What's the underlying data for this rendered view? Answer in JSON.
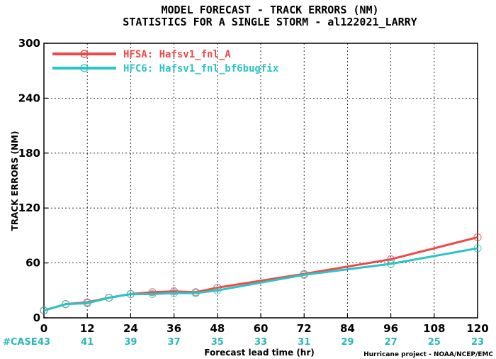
{
  "chart_data": {
    "type": "line",
    "title": "MODEL FORECAST - TRACK ERRORS (NM)",
    "subtitle": "STATISTICS FOR A SINGLE STORM - al122021_LARRY",
    "xlabel": "Forecast lead time (hr)",
    "ylabel": "TRACK ERRORS (NM)",
    "xlim": [
      0,
      120
    ],
    "ylim": [
      0,
      300
    ],
    "x_ticks": [
      "0",
      "12",
      "24",
      "36",
      "48",
      "60",
      "72",
      "84",
      "96",
      "108",
      "120"
    ],
    "y_ticks": [
      "0",
      "60",
      "120",
      "180",
      "240",
      "300"
    ],
    "legend_position": "top-left",
    "series": [
      {
        "name": "HFSA: Hafsv1_fnl_A",
        "color": "#f04848",
        "x": [
          0,
          6,
          12,
          18,
          24,
          30,
          36,
          42,
          48,
          72,
          96,
          120
        ],
        "values": [
          8,
          15,
          17,
          22,
          26,
          28,
          29,
          28,
          33,
          48,
          64,
          88
        ]
      },
      {
        "name": "HFC6: Hafsv1_fnl_bf6bugfix",
        "color": "#2ac4c4",
        "x": [
          0,
          6,
          12,
          18,
          24,
          30,
          36,
          42,
          48,
          72,
          96,
          120
        ],
        "values": [
          8,
          15,
          16,
          22,
          26,
          26,
          27,
          27,
          30,
          47,
          59,
          76
        ]
      }
    ],
    "case_label": "#CASE",
    "case_x": [
      0,
      12,
      24,
      36,
      48,
      60,
      72,
      84,
      96,
      108,
      120
    ],
    "case_counts": [
      "43",
      "41",
      "39",
      "37",
      "35",
      "33",
      "31",
      "29",
      "27",
      "25",
      "23"
    ],
    "credit": "Hurricane project - NOAA/NCEP/EMC"
  }
}
